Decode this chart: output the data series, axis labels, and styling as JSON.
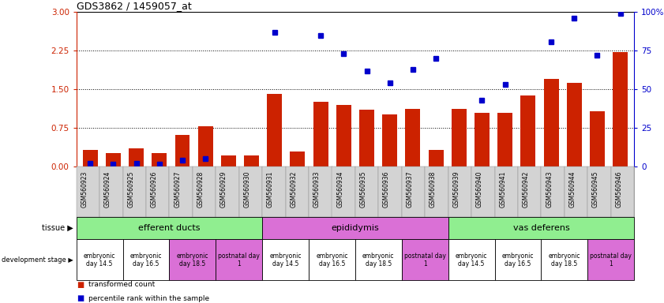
{
  "title": "GDS3862 / 1459057_at",
  "samples": [
    "GSM560923",
    "GSM560924",
    "GSM560925",
    "GSM560926",
    "GSM560927",
    "GSM560928",
    "GSM560929",
    "GSM560930",
    "GSM560931",
    "GSM560932",
    "GSM560933",
    "GSM560934",
    "GSM560935",
    "GSM560936",
    "GSM560937",
    "GSM560938",
    "GSM560939",
    "GSM560940",
    "GSM560941",
    "GSM560942",
    "GSM560943",
    "GSM560944",
    "GSM560945",
    "GSM560946"
  ],
  "red_bars": [
    0.33,
    0.27,
    0.35,
    0.27,
    0.62,
    0.78,
    0.22,
    0.22,
    1.42,
    0.3,
    1.26,
    1.2,
    1.1,
    1.02,
    1.12,
    0.32,
    1.12,
    1.05,
    1.05,
    1.38,
    1.7,
    1.62,
    1.08,
    2.22
  ],
  "blue_dots_pct": [
    2,
    1.5,
    2,
    1.5,
    4,
    5,
    null,
    null,
    87,
    null,
    85,
    73,
    62,
    54,
    63,
    70,
    null,
    43,
    53,
    null,
    81,
    96,
    72,
    99
  ],
  "ylim_left": [
    0,
    3
  ],
  "ylim_right": [
    0,
    100
  ],
  "yticks_left": [
    0,
    0.75,
    1.5,
    2.25,
    3.0
  ],
  "yticks_right": [
    0,
    25,
    50,
    75,
    100
  ],
  "ytick_labels_right": [
    "0",
    "25",
    "50",
    "75",
    "100%"
  ],
  "tissue_groups": [
    {
      "label": "efferent ducts",
      "start": 0,
      "end": 7,
      "color": "#90EE90"
    },
    {
      "label": "epididymis",
      "start": 8,
      "end": 15,
      "color": "#DA70D6"
    },
    {
      "label": "vas deferens",
      "start": 16,
      "end": 23,
      "color": "#90EE90"
    }
  ],
  "dev_stage_groups": [
    {
      "label": "embryonic\nday 14.5",
      "start": 0,
      "end": 1,
      "color": "#FFFFFF"
    },
    {
      "label": "embryonic\nday 16.5",
      "start": 2,
      "end": 3,
      "color": "#FFFFFF"
    },
    {
      "label": "embryonic\nday 18.5",
      "start": 4,
      "end": 5,
      "color": "#DA70D6"
    },
    {
      "label": "postnatal day\n1",
      "start": 6,
      "end": 7,
      "color": "#DA70D6"
    },
    {
      "label": "embryonic\nday 14.5",
      "start": 8,
      "end": 9,
      "color": "#FFFFFF"
    },
    {
      "label": "embryonic\nday 16.5",
      "start": 10,
      "end": 11,
      "color": "#FFFFFF"
    },
    {
      "label": "embryonic\nday 18.5",
      "start": 12,
      "end": 13,
      "color": "#FFFFFF"
    },
    {
      "label": "postnatal day\n1",
      "start": 14,
      "end": 15,
      "color": "#DA70D6"
    },
    {
      "label": "embryonic\nday 14.5",
      "start": 16,
      "end": 17,
      "color": "#FFFFFF"
    },
    {
      "label": "embryonic\nday 16.5",
      "start": 18,
      "end": 19,
      "color": "#FFFFFF"
    },
    {
      "label": "embryonic\nday 18.5",
      "start": 20,
      "end": 21,
      "color": "#FFFFFF"
    },
    {
      "label": "postnatal day\n1",
      "start": 22,
      "end": 23,
      "color": "#DA70D6"
    }
  ],
  "bar_color": "#CC2200",
  "dot_color": "#0000CC",
  "bg_color": "#FFFFFF",
  "left_axis_color": "#CC2200",
  "right_axis_color": "#0000CC",
  "xtick_bg": "#D3D3D3"
}
